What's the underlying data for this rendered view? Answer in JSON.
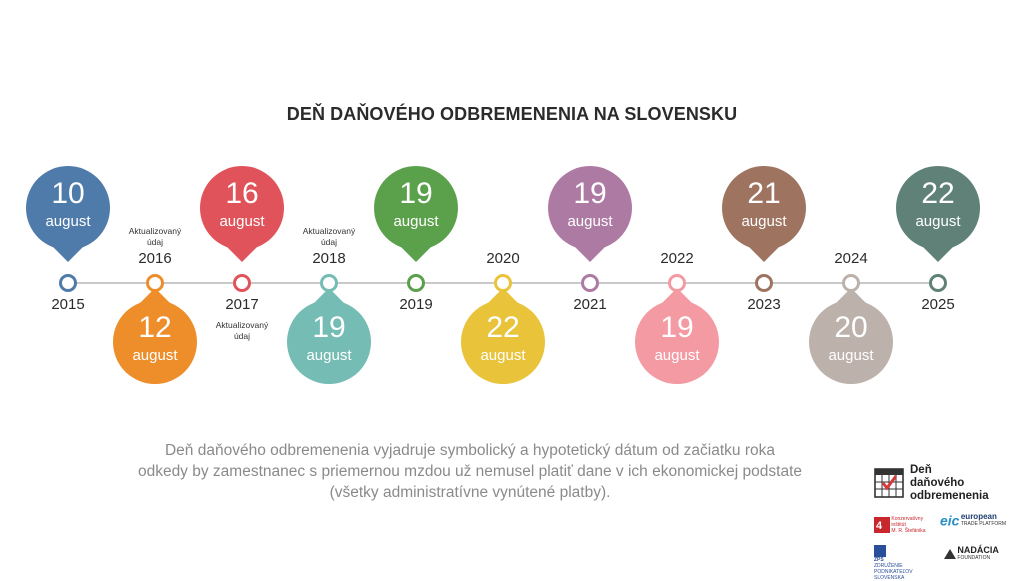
{
  "title": "DEŇ DAŇOVÉHO ODBREMENENIA NA SLOVENSKU",
  "timeline": [
    {
      "year": "2015",
      "day": "10",
      "month": "august",
      "position": "up",
      "color": "#4e7baa"
    },
    {
      "year": "2016",
      "day": "12",
      "month": "august",
      "position": "down",
      "color": "#ee8e2a",
      "note": [
        "Aktualizovaný",
        "údaj"
      ]
    },
    {
      "year": "2017",
      "day": "16",
      "month": "august",
      "position": "up",
      "color": "#e0535a",
      "note": [
        "Aktualizovaný",
        "údaj"
      ]
    },
    {
      "year": "2018",
      "day": "19",
      "month": "august",
      "position": "down",
      "color": "#74bcb4",
      "note": [
        "Aktualizovaný",
        "údaj"
      ]
    },
    {
      "year": "2019",
      "day": "19",
      "month": "august",
      "position": "up",
      "color": "#5ba14c"
    },
    {
      "year": "2020",
      "day": "22",
      "month": "august",
      "position": "down",
      "color": "#e9c33a"
    },
    {
      "year": "2021",
      "day": "19",
      "month": "august",
      "position": "up",
      "color": "#ad7aa4"
    },
    {
      "year": "2022",
      "day": "19",
      "month": "august",
      "position": "down",
      "color": "#f49aa3"
    },
    {
      "year": "2023",
      "day": "21",
      "month": "august",
      "position": "up",
      "color": "#9e7461"
    },
    {
      "year": "2024",
      "day": "20",
      "month": "august",
      "position": "down",
      "color": "#bcb1ab"
    },
    {
      "year": "2025",
      "day": "22",
      "month": "august",
      "position": "up",
      "color": "#5f8178"
    }
  ],
  "description": [
    "Deň daňového odbremenenia vyjadruje symbolický a hypotetický dátum od začiatku roka",
    "odkedy by zamestnanec s priemernou mzdou už nemusel platiť dane v ich ekonomickej podstate",
    "(všetky administratívne vynútené platby)."
  ],
  "logos": {
    "main": [
      "Deň",
      "daňového",
      "odbremenenia"
    ],
    "konzervativny": [
      "Konzervatívny",
      "inštitút",
      "M. R. Štefánika"
    ],
    "eic": [
      "eic",
      "european",
      "TRADE PLATFORM"
    ],
    "zps": [
      "ZPS",
      "ZDRUŽENIE PODNIKATEĽOV",
      "SLOVENSKA"
    ],
    "nadacia": [
      "NADÁCIA",
      "FOUNDATION"
    ]
  }
}
